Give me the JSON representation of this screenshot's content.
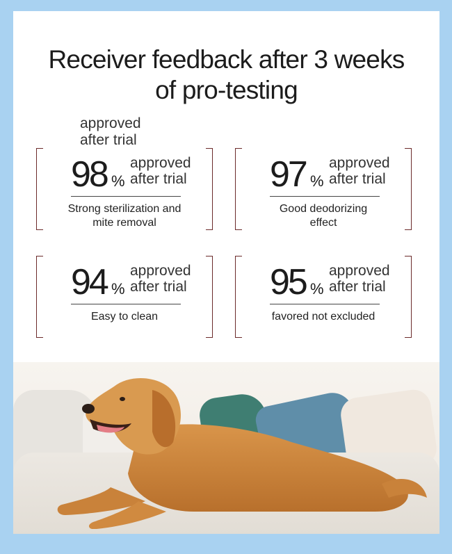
{
  "title_line1": "Receiver feedback after 3 weeks",
  "title_line2": "of pro-testing",
  "stray_label": {
    "line1": "approved",
    "line2": "after trial"
  },
  "stats": [
    {
      "value": "98",
      "unit": "%",
      "label1": "approved",
      "label2": "after trial",
      "desc1": "Strong sterilization and",
      "desc2": "mite removal"
    },
    {
      "value": "97",
      "unit": "%",
      "label1": "approved",
      "label2": "after trial",
      "desc1": "Good deodorizing",
      "desc2": "effect"
    },
    {
      "value": "94",
      "unit": "%",
      "label1": "approved",
      "label2": "after trial",
      "desc1": "Easy to clean",
      "desc2": ""
    },
    {
      "value": "95",
      "unit": "%",
      "label1": "approved",
      "label2": "after trial",
      "desc1": "favored not excluded",
      "desc2": ""
    }
  ],
  "colors": {
    "background": "#a9d2f1",
    "panel": "#ffffff",
    "bracket": "#6b2a2a"
  },
  "photo": {
    "subject": "golden-retriever-on-sofa"
  }
}
